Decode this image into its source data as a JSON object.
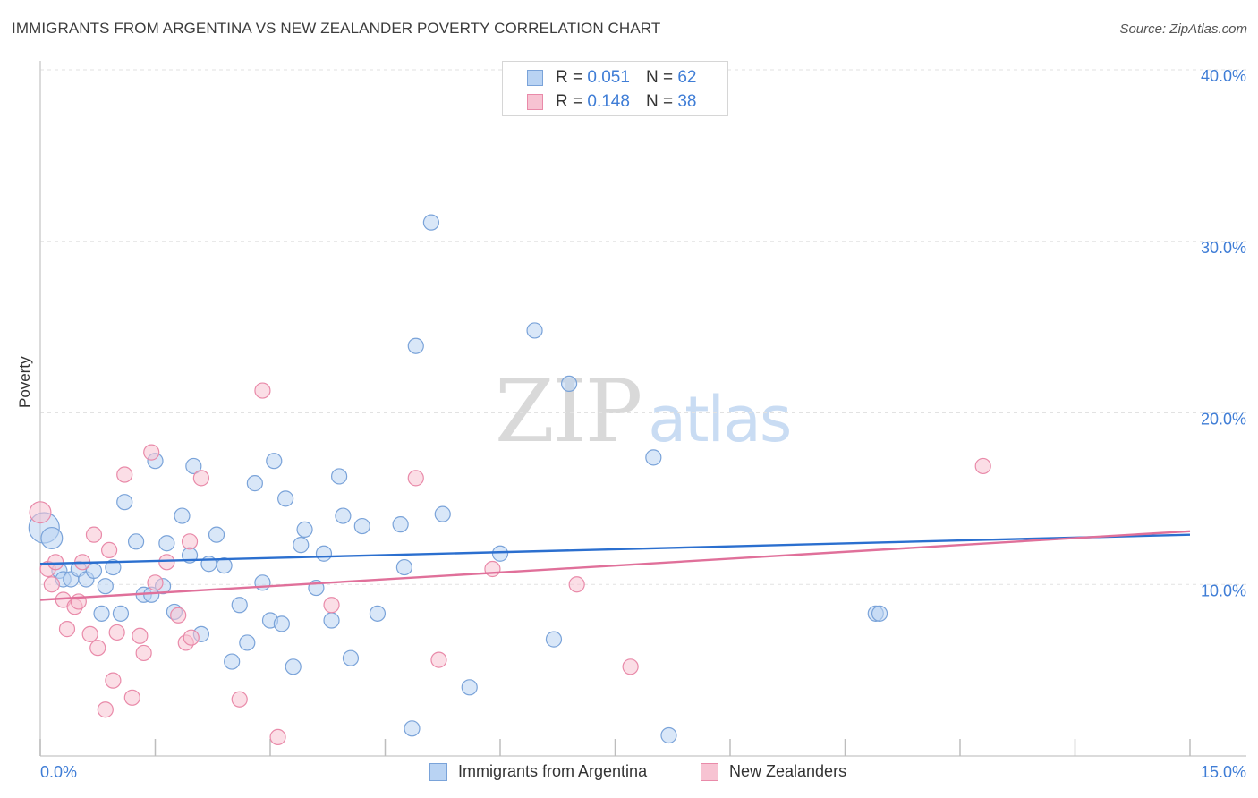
{
  "title": "IMMIGRANTS FROM ARGENTINA VS NEW ZEALANDER POVERTY CORRELATION CHART",
  "source": "Source: ZipAtlas.com",
  "watermark": {
    "zip": "ZIP",
    "atlas": "atlas"
  },
  "legend_top": [
    {
      "r_label": "R = ",
      "r_value": "0.051",
      "n_label": "N = ",
      "n_value": "62"
    },
    {
      "r_label": "R = ",
      "r_value": "0.148",
      "n_label": "N = ",
      "n_value": "38"
    }
  ],
  "colors": {
    "blue_fill": "#b9d3f3",
    "blue_edge": "#7aa3d9",
    "blue_line": "#2b6fcf",
    "pink_fill": "#f7c3d2",
    "pink_edge": "#e98aa9",
    "pink_line": "#e0709a",
    "tick_text": "#3f7dd6",
    "grid": "#e2e2e2"
  },
  "chart_data": {
    "type": "scatter",
    "title": "IMMIGRANTS FROM ARGENTINA VS NEW ZEALANDER POVERTY CORRELATION CHART",
    "xlabel": "",
    "ylabel": "Poverty",
    "xlim": [
      0,
      15
    ],
    "ylim": [
      0,
      40
    ],
    "x_tick_labels": [
      "0.0%",
      "15.0%"
    ],
    "y_ticks": [
      10,
      20,
      30,
      40
    ],
    "y_tick_labels": [
      "10.0%",
      "20.0%",
      "30.0%",
      "40.0%"
    ],
    "grid": true,
    "legend_position": "bottom",
    "series": [
      {
        "name": "Immigrants from Argentina",
        "color": "#b9d3f3",
        "trend": {
          "x": [
            0,
            15
          ],
          "y": [
            11.2,
            12.9
          ]
        },
        "points": [
          {
            "x": 0.05,
            "y": 13.3,
            "s": 2
          },
          {
            "x": 0.15,
            "y": 12.7,
            "s": 1.4
          },
          {
            "x": 0.25,
            "y": 10.8
          },
          {
            "x": 0.3,
            "y": 10.3
          },
          {
            "x": 0.4,
            "y": 10.3
          },
          {
            "x": 0.5,
            "y": 10.9
          },
          {
            "x": 0.6,
            "y": 10.3
          },
          {
            "x": 0.7,
            "y": 10.8
          },
          {
            "x": 0.8,
            "y": 8.3
          },
          {
            "x": 0.85,
            "y": 9.9
          },
          {
            "x": 0.95,
            "y": 11.0
          },
          {
            "x": 1.05,
            "y": 8.3
          },
          {
            "x": 1.1,
            "y": 14.8
          },
          {
            "x": 1.25,
            "y": 12.5
          },
          {
            "x": 1.35,
            "y": 9.4
          },
          {
            "x": 1.45,
            "y": 9.4
          },
          {
            "x": 1.5,
            "y": 17.2
          },
          {
            "x": 1.6,
            "y": 9.9
          },
          {
            "x": 1.65,
            "y": 12.4
          },
          {
            "x": 1.75,
            "y": 8.4
          },
          {
            "x": 1.85,
            "y": 14.0
          },
          {
            "x": 1.95,
            "y": 11.7
          },
          {
            "x": 2.0,
            "y": 16.9
          },
          {
            "x": 2.1,
            "y": 7.1
          },
          {
            "x": 2.2,
            "y": 11.2
          },
          {
            "x": 2.3,
            "y": 12.9
          },
          {
            "x": 2.4,
            "y": 11.1
          },
          {
            "x": 2.5,
            "y": 5.5
          },
          {
            "x": 2.6,
            "y": 8.8
          },
          {
            "x": 2.7,
            "y": 6.6
          },
          {
            "x": 2.8,
            "y": 15.9
          },
          {
            "x": 2.9,
            "y": 10.1
          },
          {
            "x": 3.0,
            "y": 7.9
          },
          {
            "x": 3.05,
            "y": 17.2
          },
          {
            "x": 3.15,
            "y": 7.7
          },
          {
            "x": 3.2,
            "y": 15.0
          },
          {
            "x": 3.3,
            "y": 5.2
          },
          {
            "x": 3.4,
            "y": 12.3
          },
          {
            "x": 3.45,
            "y": 13.2
          },
          {
            "x": 3.6,
            "y": 9.8
          },
          {
            "x": 3.7,
            "y": 11.8
          },
          {
            "x": 3.8,
            "y": 7.9
          },
          {
            "x": 3.9,
            "y": 16.3
          },
          {
            "x": 3.95,
            "y": 14.0
          },
          {
            "x": 4.05,
            "y": 5.7
          },
          {
            "x": 4.2,
            "y": 13.4
          },
          {
            "x": 4.4,
            "y": 8.3
          },
          {
            "x": 4.7,
            "y": 13.5
          },
          {
            "x": 4.75,
            "y": 11.0
          },
          {
            "x": 4.85,
            "y": 1.6
          },
          {
            "x": 4.9,
            "y": 23.9
          },
          {
            "x": 5.1,
            "y": 31.1
          },
          {
            "x": 5.25,
            "y": 14.1
          },
          {
            "x": 5.6,
            "y": 4.0
          },
          {
            "x": 6.0,
            "y": 11.8
          },
          {
            "x": 6.45,
            "y": 24.8
          },
          {
            "x": 6.7,
            "y": 6.8
          },
          {
            "x": 6.9,
            "y": 21.7
          },
          {
            "x": 8.0,
            "y": 17.4
          },
          {
            "x": 8.2,
            "y": 1.2
          },
          {
            "x": 10.9,
            "y": 8.3
          },
          {
            "x": 10.95,
            "y": 8.3
          }
        ]
      },
      {
        "name": "New Zealanders",
        "color": "#f7c3d2",
        "trend": {
          "x": [
            0,
            15
          ],
          "y": [
            9.1,
            13.1
          ]
        },
        "points": [
          {
            "x": 0.0,
            "y": 14.2,
            "s": 1.4
          },
          {
            "x": 0.1,
            "y": 10.9
          },
          {
            "x": 0.15,
            "y": 10.0
          },
          {
            "x": 0.2,
            "y": 11.3
          },
          {
            "x": 0.3,
            "y": 9.1
          },
          {
            "x": 0.35,
            "y": 7.4
          },
          {
            "x": 0.45,
            "y": 8.7
          },
          {
            "x": 0.5,
            "y": 9.0
          },
          {
            "x": 0.55,
            "y": 11.3
          },
          {
            "x": 0.65,
            "y": 7.1
          },
          {
            "x": 0.7,
            "y": 12.9
          },
          {
            "x": 0.75,
            "y": 6.3
          },
          {
            "x": 0.85,
            "y": 2.7
          },
          {
            "x": 0.9,
            "y": 12.0
          },
          {
            "x": 0.95,
            "y": 4.4
          },
          {
            "x": 1.0,
            "y": 7.2
          },
          {
            "x": 1.1,
            "y": 16.4
          },
          {
            "x": 1.2,
            "y": 3.4
          },
          {
            "x": 1.3,
            "y": 7.0
          },
          {
            "x": 1.35,
            "y": 6.0
          },
          {
            "x": 1.45,
            "y": 17.7
          },
          {
            "x": 1.5,
            "y": 10.1
          },
          {
            "x": 1.65,
            "y": 11.3
          },
          {
            "x": 1.8,
            "y": 8.2
          },
          {
            "x": 1.9,
            "y": 6.6
          },
          {
            "x": 1.95,
            "y": 12.5
          },
          {
            "x": 1.97,
            "y": 6.9
          },
          {
            "x": 2.1,
            "y": 16.2
          },
          {
            "x": 2.6,
            "y": 3.3
          },
          {
            "x": 2.9,
            "y": 21.3
          },
          {
            "x": 3.1,
            "y": 1.1
          },
          {
            "x": 3.8,
            "y": 8.8
          },
          {
            "x": 4.9,
            "y": 16.2
          },
          {
            "x": 5.2,
            "y": 5.6
          },
          {
            "x": 5.9,
            "y": 10.9
          },
          {
            "x": 7.0,
            "y": 10.0
          },
          {
            "x": 7.7,
            "y": 5.2
          },
          {
            "x": 12.3,
            "y": 16.9
          }
        ]
      }
    ]
  }
}
